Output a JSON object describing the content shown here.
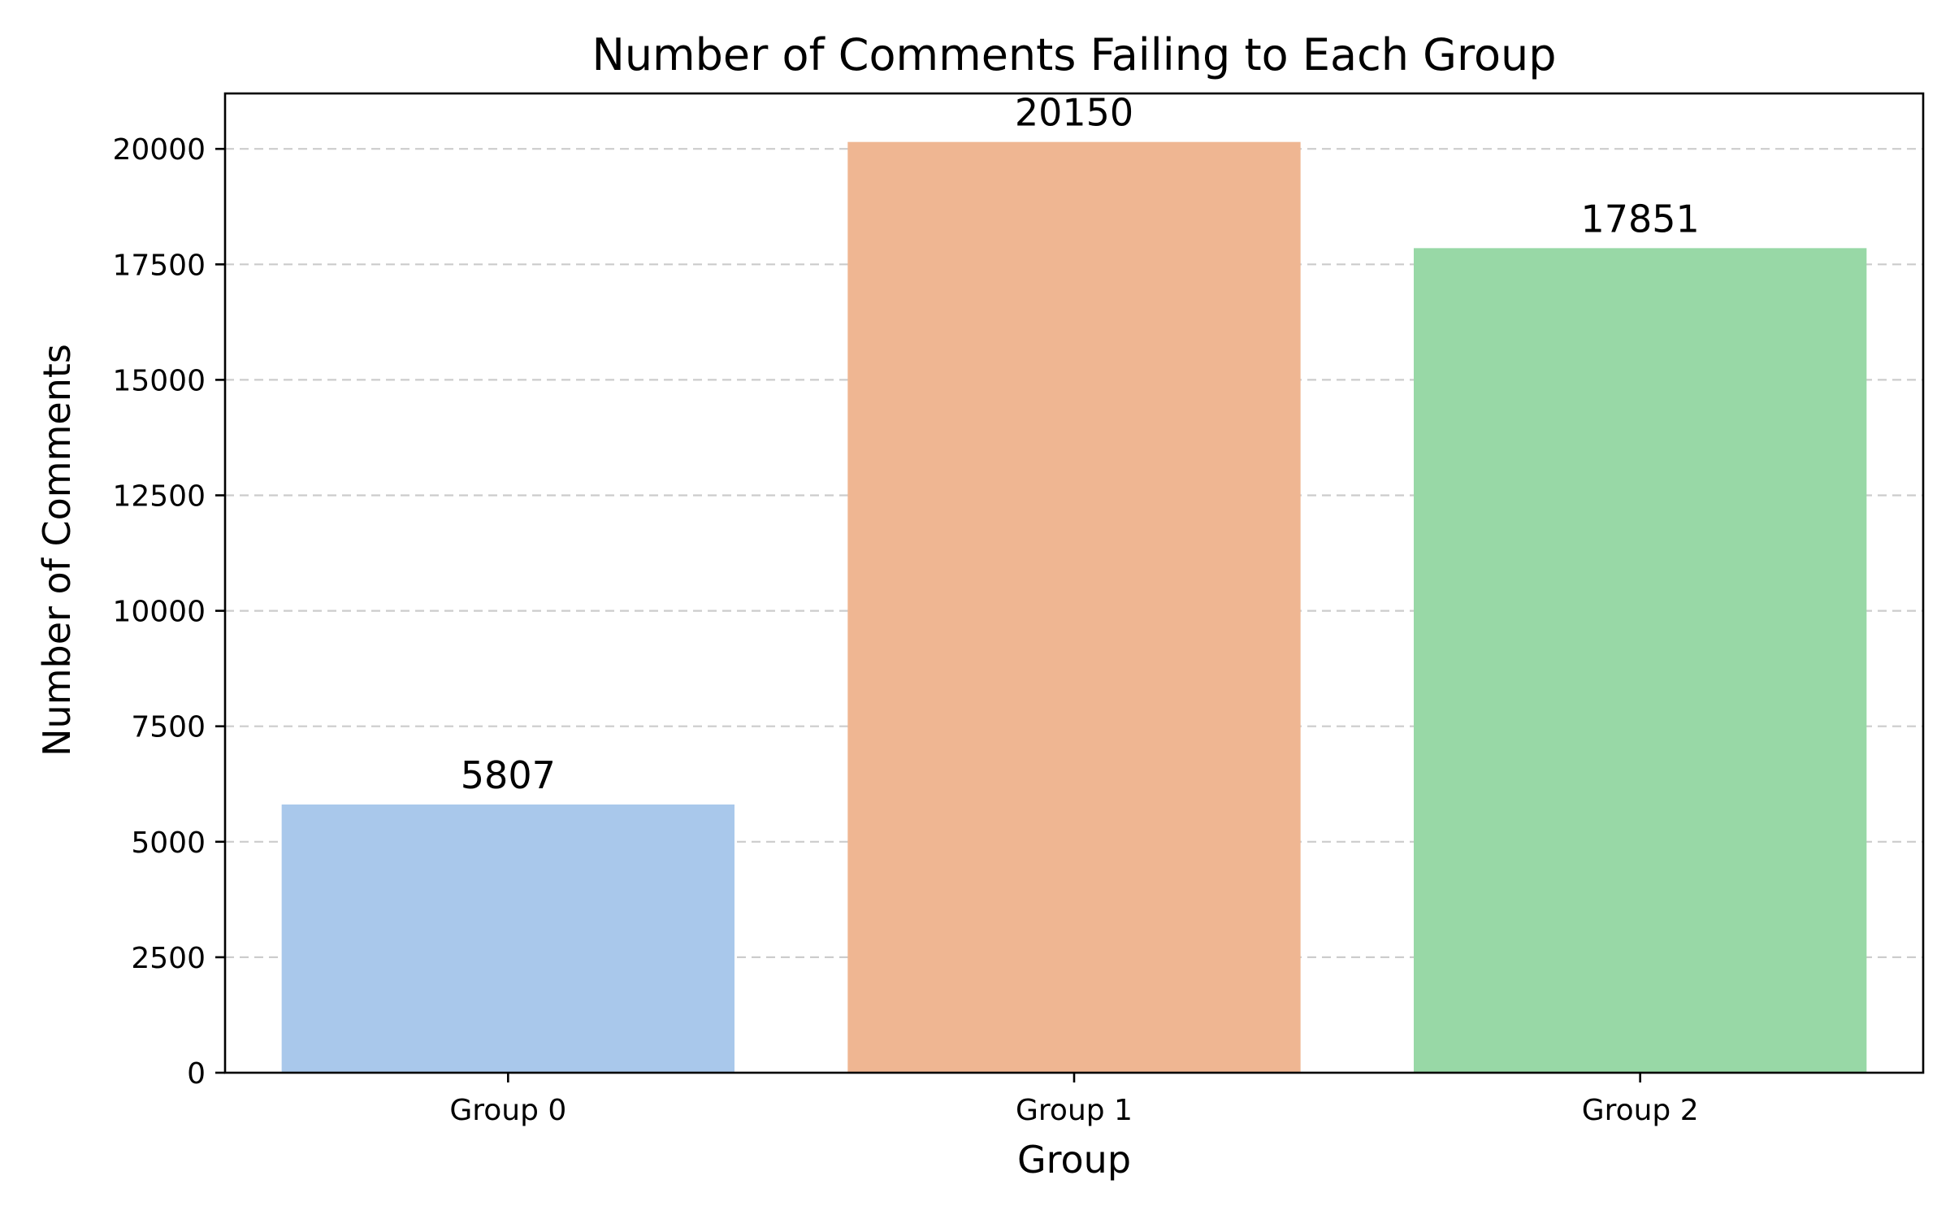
{
  "chart_data": {
    "type": "bar",
    "title": "Number of Comments Failing to Each Group",
    "xlabel": "Group",
    "ylabel": "Number of Comments",
    "categories": [
      "Group 0",
      "Group 1",
      "Group 2"
    ],
    "values": [
      5807,
      20150,
      17851
    ],
    "data_labels": [
      "5807",
      "20150",
      "17851"
    ],
    "colors": [
      "#a9c8eb",
      "#efb692",
      "#98d8a6"
    ],
    "ylim": [
      0,
      21200
    ],
    "yticks": [
      0,
      2500,
      5000,
      7500,
      10000,
      12500,
      15000,
      17500,
      20000
    ],
    "ytick_labels": [
      "0",
      "2500",
      "5000",
      "7500",
      "10000",
      "12500",
      "15000",
      "17500",
      "20000"
    ],
    "grid": "horizontal dashed",
    "legend": "none"
  }
}
